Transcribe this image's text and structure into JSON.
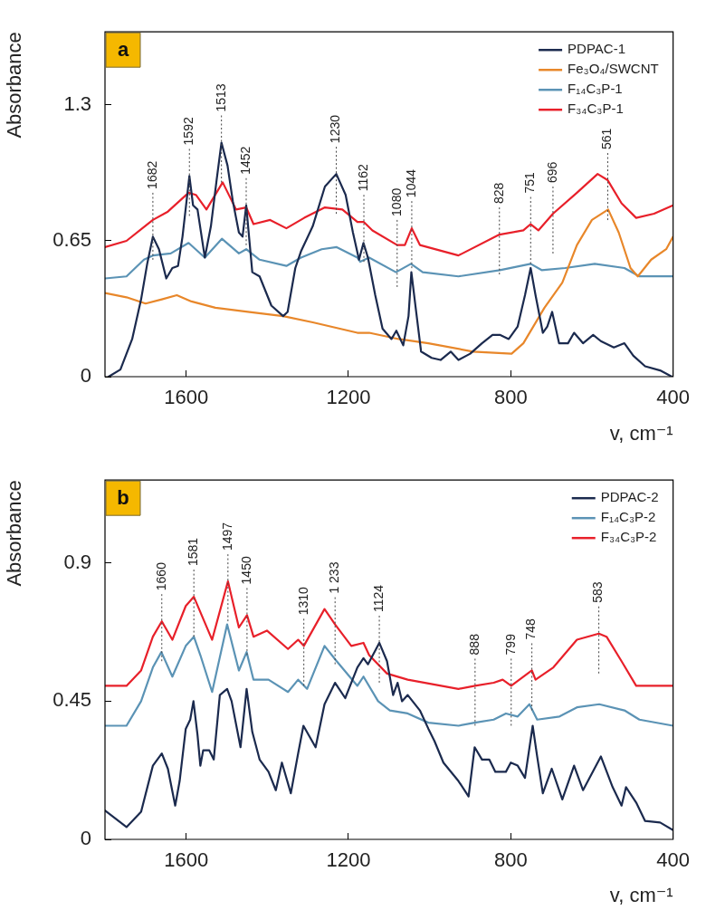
{
  "chart_data": [
    {
      "type": "line",
      "xlabel": "v, cm⁻¹",
      "ylabel": "Absorbance",
      "xlim": [
        1800,
        400
      ],
      "xticks": [
        1600,
        1200,
        800,
        400
      ],
      "ylim": [
        0,
        1.65
      ],
      "yticks": [
        0,
        0.65,
        1.3
      ],
      "grid": false,
      "legend": "top right",
      "marker": "none",
      "line_style": "solid",
      "annotations": [
        "a",
        {
          "text": "1682",
          "x": 1682,
          "y": 0.75
        },
        {
          "text": "1592",
          "x": 1592,
          "y": 0.96
        },
        {
          "text": "1513",
          "x": 1513,
          "y": 1.12
        },
        {
          "text": "1452",
          "x": 1452,
          "y": 0.82
        },
        {
          "text": "1230",
          "x": 1230,
          "y": 0.97
        },
        {
          "text": "1162",
          "x": 1162,
          "y": 0.74
        },
        {
          "text": "1080",
          "x": 1080,
          "y": 0.62
        },
        {
          "text": "1044",
          "x": 1044,
          "y": 0.71
        },
        {
          "text": "828",
          "x": 828,
          "y": 0.68
        },
        {
          "text": "751",
          "x": 751,
          "y": 0.73
        },
        {
          "text": "696",
          "x": 696,
          "y": 0.78
        },
        {
          "text": "561",
          "x": 561,
          "y": 0.94
        }
      ],
      "series": [
        {
          "name": "PDPAC-1",
          "color": "#1b2a4e",
          "x": [
            1791,
            1762,
            1733,
            1711,
            1696,
            1682,
            1667,
            1649,
            1634,
            1620,
            1609,
            1592,
            1583,
            1572,
            1554,
            1539,
            1525,
            1513,
            1498,
            1485,
            1470,
            1461,
            1452,
            1445,
            1437,
            1419,
            1390,
            1361,
            1350,
            1331,
            1317,
            1288,
            1258,
            1230,
            1207,
            1189,
            1174,
            1163,
            1152,
            1134,
            1116,
            1094,
            1082,
            1065,
            1052,
            1045,
            1035,
            1021,
            995,
            973,
            948,
            929,
            900,
            871,
            845,
            827,
            805,
            783,
            765,
            751,
            739,
            721,
            710,
            698,
            681,
            659,
            644,
            622,
            597,
            578,
            546,
            520,
            498,
            469,
            432,
            403
          ],
          "values": [
            0,
            0.034,
            0.18,
            0.37,
            0.54,
            0.67,
            0.61,
            0.47,
            0.52,
            0.53,
            0.67,
            0.96,
            0.82,
            0.8,
            0.57,
            0.72,
            0.94,
            1.12,
            1.01,
            0.84,
            0.69,
            0.67,
            0.82,
            0.67,
            0.5,
            0.48,
            0.34,
            0.29,
            0.31,
            0.52,
            0.6,
            0.72,
            0.91,
            0.97,
            0.87,
            0.69,
            0.56,
            0.64,
            0.57,
            0.39,
            0.23,
            0.18,
            0.22,
            0.15,
            0.29,
            0.5,
            0.34,
            0.12,
            0.09,
            0.08,
            0.12,
            0.08,
            0.11,
            0.16,
            0.2,
            0.2,
            0.18,
            0.24,
            0.39,
            0.52,
            0.39,
            0.21,
            0.24,
            0.31,
            0.16,
            0.16,
            0.21,
            0.16,
            0.2,
            0.17,
            0.14,
            0.16,
            0.1,
            0.05,
            0.03,
            0
          ]
        },
        {
          "name": "Fe₃O₄/SWCNT",
          "color": "#e8872a",
          "x": [
            1800,
            1747,
            1700,
            1660,
            1623,
            1587,
            1528,
            1448,
            1361,
            1288,
            1178,
            1149,
            1076,
            1003,
            893,
            798,
            769,
            717,
            673,
            637,
            600,
            560,
            534,
            505,
            487,
            454,
            417,
            400
          ],
          "values": [
            0.4,
            0.38,
            0.35,
            0.37,
            0.39,
            0.36,
            0.33,
            0.31,
            0.29,
            0.26,
            0.21,
            0.21,
            0.18,
            0.16,
            0.12,
            0.11,
            0.16,
            0.33,
            0.45,
            0.63,
            0.75,
            0.8,
            0.69,
            0.52,
            0.48,
            0.56,
            0.61,
            0.67
          ]
        },
        {
          "name": "F₁₄C₃P-1",
          "color": "#5b93b5",
          "x": [
            1800,
            1747,
            1704,
            1682,
            1638,
            1594,
            1554,
            1512,
            1470,
            1452,
            1419,
            1353,
            1317,
            1266,
            1229,
            1178,
            1171,
            1149,
            1083,
            1046,
            1017,
            929,
            827,
            751,
            724,
            666,
            593,
            520,
            483,
            400
          ],
          "values": [
            0.47,
            0.48,
            0.56,
            0.58,
            0.59,
            0.64,
            0.57,
            0.66,
            0.59,
            0.61,
            0.56,
            0.53,
            0.57,
            0.61,
            0.62,
            0.57,
            0.55,
            0.57,
            0.5,
            0.54,
            0.5,
            0.48,
            0.51,
            0.54,
            0.51,
            0.52,
            0.54,
            0.52,
            0.48,
            0.48
          ]
        },
        {
          "name": "F₃₄C₃P-1",
          "color": "#e8202a",
          "x": [
            1800,
            1747,
            1682,
            1645,
            1594,
            1576,
            1550,
            1510,
            1477,
            1452,
            1434,
            1393,
            1353,
            1309,
            1258,
            1215,
            1178,
            1162,
            1141,
            1080,
            1061,
            1044,
            1024,
            929,
            828,
            769,
            751,
            732,
            696,
            637,
            586,
            561,
            527,
            491,
            447,
            400
          ],
          "values": [
            0.62,
            0.65,
            0.75,
            0.79,
            0.88,
            0.87,
            0.8,
            0.93,
            0.8,
            0.81,
            0.73,
            0.75,
            0.71,
            0.76,
            0.81,
            0.8,
            0.74,
            0.74,
            0.7,
            0.63,
            0.63,
            0.71,
            0.63,
            0.58,
            0.68,
            0.7,
            0.73,
            0.7,
            0.78,
            0.88,
            0.97,
            0.94,
            0.83,
            0.76,
            0.78,
            0.82
          ]
        }
      ]
    },
    {
      "type": "line",
      "xlabel": "v, cm⁻¹",
      "ylabel": "Absorbance",
      "xlim": [
        1800,
        400
      ],
      "xticks": [
        1600,
        1200,
        800,
        400
      ],
      "ylim": [
        0,
        1.17
      ],
      "yticks": [
        0,
        0.45,
        0.9
      ],
      "grid": false,
      "legend": "top right",
      "marker": "none",
      "line_style": "solid",
      "annotations": [
        "b",
        {
          "text": "1660",
          "x": 1660,
          "y": 0.71
        },
        {
          "text": "1581",
          "x": 1581,
          "y": 0.79
        },
        {
          "text": "1497",
          "x": 1497,
          "y": 0.84
        },
        {
          "text": "1450",
          "x": 1450,
          "y": 0.73
        },
        {
          "text": "1310",
          "x": 1310,
          "y": 0.63
        },
        {
          "text": "1 233",
          "x": 1233,
          "y": 0.7
        },
        {
          "text": "1124",
          "x": 1124,
          "y": 0.64
        },
        {
          "text": "888",
          "x": 888,
          "y": 0.5
        },
        {
          "text": "799",
          "x": 799,
          "y": 0.5
        },
        {
          "text": "748",
          "x": 748,
          "y": 0.55
        },
        {
          "text": "583",
          "x": 583,
          "y": 0.67
        }
      ],
      "series": [
        {
          "name": "PDPAC-2",
          "color": "#1b2a4e",
          "x": [
            1800,
            1747,
            1711,
            1682,
            1660,
            1645,
            1627,
            1616,
            1601,
            1590,
            1582,
            1572,
            1565,
            1558,
            1543,
            1532,
            1517,
            1499,
            1488,
            1466,
            1451,
            1437,
            1419,
            1397,
            1379,
            1364,
            1342,
            1324,
            1311,
            1281,
            1259,
            1233,
            1208,
            1178,
            1163,
            1152,
            1124,
            1105,
            1090,
            1079,
            1068,
            1054,
            1024,
            1003,
            988,
            966,
            929,
            904,
            889,
            871,
            853,
            838,
            812,
            800,
            783,
            765,
            746,
            735,
            721,
            699,
            673,
            644,
            622,
            578,
            549,
            527,
            516,
            491,
            469,
            432,
            400
          ],
          "values": [
            0.094,
            0.04,
            0.09,
            0.24,
            0.28,
            0.23,
            0.11,
            0.19,
            0.36,
            0.39,
            0.45,
            0.34,
            0.24,
            0.29,
            0.29,
            0.26,
            0.47,
            0.49,
            0.45,
            0.3,
            0.49,
            0.35,
            0.26,
            0.22,
            0.16,
            0.25,
            0.15,
            0.28,
            0.37,
            0.3,
            0.44,
            0.51,
            0.46,
            0.56,
            0.59,
            0.57,
            0.64,
            0.58,
            0.47,
            0.51,
            0.45,
            0.47,
            0.42,
            0.36,
            0.32,
            0.25,
            0.19,
            0.14,
            0.3,
            0.26,
            0.26,
            0.22,
            0.22,
            0.25,
            0.24,
            0.2,
            0.37,
            0.27,
            0.15,
            0.23,
            0.13,
            0.24,
            0.16,
            0.27,
            0.17,
            0.11,
            0.17,
            0.12,
            0.06,
            0.055,
            0.03
          ]
        },
        {
          "name": "F₁₄C₃P-2",
          "color": "#5b93b5",
          "x": [
            1800,
            1747,
            1711,
            1682,
            1661,
            1634,
            1601,
            1581,
            1565,
            1536,
            1499,
            1470,
            1451,
            1434,
            1397,
            1349,
            1324,
            1302,
            1259,
            1229,
            1178,
            1163,
            1127,
            1098,
            1054,
            1003,
            929,
            889,
            842,
            812,
            783,
            754,
            735,
            680,
            637,
            582,
            520,
            483,
            400
          ],
          "values": [
            0.37,
            0.37,
            0.45,
            0.56,
            0.61,
            0.53,
            0.63,
            0.66,
            0.6,
            0.48,
            0.7,
            0.55,
            0.61,
            0.52,
            0.52,
            0.48,
            0.52,
            0.49,
            0.63,
            0.58,
            0.5,
            0.53,
            0.45,
            0.42,
            0.41,
            0.38,
            0.37,
            0.38,
            0.39,
            0.41,
            0.4,
            0.44,
            0.39,
            0.4,
            0.43,
            0.44,
            0.42,
            0.39,
            0.37
          ]
        },
        {
          "name": "F₃₄C₃P-2",
          "color": "#e8202a",
          "x": [
            1800,
            1747,
            1711,
            1682,
            1660,
            1634,
            1601,
            1581,
            1536,
            1497,
            1470,
            1450,
            1434,
            1401,
            1349,
            1324,
            1310,
            1259,
            1233,
            1193,
            1163,
            1149,
            1105,
            1054,
            929,
            888,
            842,
            820,
            799,
            748,
            739,
            695,
            637,
            583,
            564,
            527,
            491,
            400
          ],
          "values": [
            0.5,
            0.5,
            0.55,
            0.66,
            0.71,
            0.65,
            0.76,
            0.79,
            0.65,
            0.84,
            0.69,
            0.73,
            0.66,
            0.68,
            0.62,
            0.65,
            0.63,
            0.75,
            0.7,
            0.63,
            0.64,
            0.6,
            0.54,
            0.52,
            0.49,
            0.5,
            0.51,
            0.52,
            0.5,
            0.55,
            0.52,
            0.56,
            0.65,
            0.67,
            0.66,
            0.58,
            0.5,
            0.5
          ]
        }
      ]
    }
  ]
}
